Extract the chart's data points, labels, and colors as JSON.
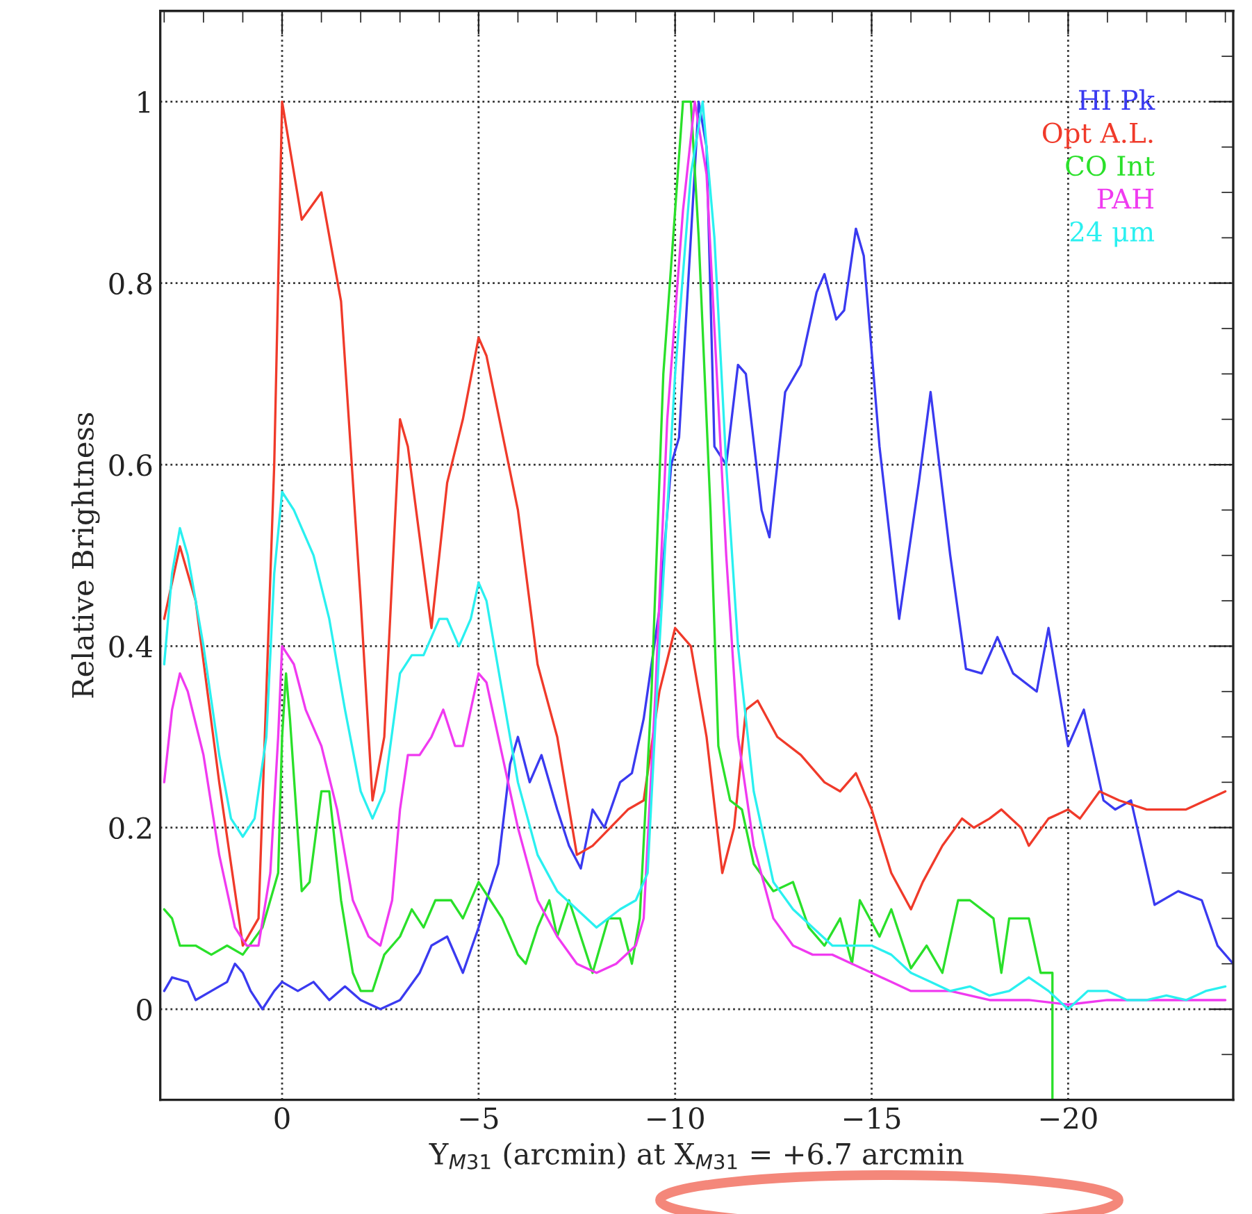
{
  "chart_data": {
    "type": "line",
    "xlabel": "Y$_{M31}$ (arcmin) at X$_{M31}$ = +6.7 arcmin",
    "ylabel": "Relative Brightness",
    "xlim": [
      3.1,
      -24.2
    ],
    "ylim": [
      -0.1,
      1.1
    ],
    "xticks": [
      0,
      {
        "value": -5,
        "label": "−5"
      },
      {
        "value": -10,
        "label": "−10"
      },
      {
        "value": -15,
        "label": "−15"
      },
      {
        "value": -20,
        "label": "−20"
      }
    ],
    "yticks": [
      0,
      0.2,
      0.4,
      0.6,
      0.8,
      1
    ],
    "grid": true,
    "legend": "top right",
    "line_style": "solid",
    "marker": "none",
    "series": [
      {
        "name": "HI Pk",
        "color": "#3a3af0",
        "x": [
          3,
          2.8,
          2.4,
          2.2,
          1.8,
          1.4,
          1.2,
          1.0,
          0.8,
          0.5,
          0.2,
          0,
          -0.4,
          -0.8,
          -1.2,
          -1.6,
          -2.0,
          -2.5,
          -3.0,
          -3.5,
          -3.8,
          -4.2,
          -4.6,
          -5.0,
          -5.2,
          -5.5,
          -5.8,
          -6.0,
          -6.3,
          -6.6,
          -7.0,
          -7.3,
          -7.6,
          -7.9,
          -8.2,
          -8.6,
          -8.9,
          -9.2,
          -9.6,
          -9.9,
          -10.1,
          -10.4,
          -10.6,
          -10.8,
          -11.0,
          -11.3,
          -11.6,
          -11.8,
          -12.2,
          -12.4,
          -12.8,
          -13.2,
          -13.6,
          -13.8,
          -14.1,
          -14.3,
          -14.6,
          -14.8,
          -15.2,
          -15.7,
          -16.2,
          -16.5,
          -17.0,
          -17.4,
          -17.8,
          -18.2,
          -18.6,
          -19.2,
          -19.5,
          -20.0,
          -20.4,
          -20.9,
          -21.2,
          -21.6,
          -22.2,
          -22.8,
          -23.4,
          -23.8,
          -24.2
        ],
        "values": [
          0.02,
          0.035,
          0.03,
          0.01,
          0.02,
          0.03,
          0.05,
          0.04,
          0.02,
          0.0,
          0.02,
          0.03,
          0.02,
          0.03,
          0.01,
          0.025,
          0.01,
          0.0,
          0.01,
          0.04,
          0.07,
          0.08,
          0.04,
          0.09,
          0.12,
          0.16,
          0.27,
          0.3,
          0.25,
          0.28,
          0.22,
          0.18,
          0.155,
          0.22,
          0.2,
          0.25,
          0.26,
          0.32,
          0.44,
          0.6,
          0.63,
          0.85,
          1.0,
          0.95,
          0.62,
          0.6,
          0.71,
          0.7,
          0.55,
          0.52,
          0.68,
          0.71,
          0.79,
          0.81,
          0.76,
          0.77,
          0.86,
          0.83,
          0.62,
          0.43,
          0.58,
          0.68,
          0.5,
          0.375,
          0.37,
          0.41,
          0.37,
          0.35,
          0.42,
          0.29,
          0.33,
          0.23,
          0.22,
          0.23,
          0.115,
          0.13,
          0.12,
          0.07,
          0.05
        ]
      },
      {
        "name": "Opt A.L.",
        "color": "#f03a2a",
        "x": [
          3,
          2.6,
          2.2,
          1.6,
          1.0,
          0.6,
          0.2,
          0,
          -0.5,
          -1.0,
          -1.5,
          -2.0,
          -2.3,
          -2.6,
          -3.0,
          -3.2,
          -3.8,
          -4.2,
          -4.6,
          -5.0,
          -5.2,
          -6.0,
          -6.5,
          -7.0,
          -7.5,
          -7.9,
          -8.8,
          -9.2,
          -9.6,
          -10.0,
          -10.4,
          -10.8,
          -11.2,
          -11.5,
          -11.8,
          -12.1,
          -12.6,
          -13.2,
          -13.8,
          -14.2,
          -14.6,
          -15.0,
          -15.5,
          -16.0,
          -16.3,
          -16.8,
          -17.3,
          -17.6,
          -18.0,
          -18.3,
          -18.8,
          -19.0,
          -19.5,
          -20.0,
          -20.3,
          -20.8,
          -21.3,
          -22.0,
          -23.0,
          -24.0
        ],
        "values": [
          0.43,
          0.51,
          0.45,
          0.25,
          0.07,
          0.1,
          0.6,
          1.0,
          0.87,
          0.9,
          0.78,
          0.45,
          0.23,
          0.3,
          0.65,
          0.62,
          0.42,
          0.58,
          0.65,
          0.74,
          0.72,
          0.55,
          0.38,
          0.3,
          0.17,
          0.18,
          0.22,
          0.23,
          0.35,
          0.42,
          0.4,
          0.3,
          0.15,
          0.2,
          0.33,
          0.34,
          0.3,
          0.28,
          0.25,
          0.24,
          0.26,
          0.22,
          0.15,
          0.11,
          0.14,
          0.18,
          0.21,
          0.2,
          0.21,
          0.22,
          0.2,
          0.18,
          0.21,
          0.22,
          0.21,
          0.24,
          0.23,
          0.22,
          0.22,
          0.24
        ]
      },
      {
        "name": "CO Int",
        "color": "#2ae02a",
        "x": [
          3,
          2.8,
          2.6,
          2.2,
          1.8,
          1.4,
          1.0,
          0.5,
          0.1,
          0.0,
          -0.1,
          -0.2,
          -0.5,
          -0.7,
          -1.0,
          -1.2,
          -1.5,
          -1.8,
          -2.0,
          -2.3,
          -2.6,
          -3.0,
          -3.3,
          -3.6,
          -3.9,
          -4.3,
          -4.6,
          -5.0,
          -5.3,
          -5.6,
          -6.0,
          -6.2,
          -6.5,
          -6.8,
          -7.0,
          -7.3,
          -7.6,
          -7.9,
          -8.3,
          -8.6,
          -8.9,
          -9.1,
          -9.4,
          -9.7,
          -10.0,
          -10.2,
          -10.4,
          -10.6,
          -10.9,
          -11.1,
          -11.4,
          -11.7,
          -12.0,
          -12.5,
          -13.0,
          -13.4,
          -13.8,
          -14.2,
          -14.5,
          -14.7,
          -15.2,
          -15.5,
          -16.0,
          -16.4,
          -16.8,
          -17.2,
          -17.5,
          -18.1,
          -18.3,
          -18.5,
          -19.0,
          -19.3,
          -19.6,
          -19.6
        ],
        "values": [
          0.11,
          0.1,
          0.07,
          0.07,
          0.06,
          0.07,
          0.06,
          0.09,
          0.15,
          0.3,
          0.37,
          0.32,
          0.13,
          0.14,
          0.24,
          0.24,
          0.12,
          0.04,
          0.02,
          0.02,
          0.06,
          0.08,
          0.11,
          0.09,
          0.12,
          0.12,
          0.1,
          0.14,
          0.12,
          0.1,
          0.06,
          0.05,
          0.09,
          0.12,
          0.08,
          0.12,
          0.08,
          0.04,
          0.1,
          0.1,
          0.05,
          0.1,
          0.35,
          0.7,
          0.88,
          1.0,
          1.0,
          0.85,
          0.55,
          0.29,
          0.23,
          0.22,
          0.16,
          0.13,
          0.14,
          0.09,
          0.07,
          0.1,
          0.05,
          0.12,
          0.08,
          0.11,
          0.045,
          0.07,
          0.04,
          0.12,
          0.12,
          0.1,
          0.04,
          0.1,
          0.1,
          0.04,
          0.04,
          -0.1
        ]
      },
      {
        "name": "PAH",
        "color": "#f03af0",
        "x": [
          3,
          2.8,
          2.6,
          2.4,
          2.0,
          1.6,
          1.2,
          0.9,
          0.6,
          0.3,
          0.1,
          0.0,
          -0.3,
          -0.6,
          -1.0,
          -1.4,
          -1.8,
          -2.2,
          -2.5,
          -2.8,
          -3.0,
          -3.2,
          -3.5,
          -3.8,
          -4.1,
          -4.4,
          -4.6,
          -4.8,
          -5.0,
          -5.2,
          -5.6,
          -6.0,
          -6.5,
          -7.0,
          -7.5,
          -8.0,
          -8.5,
          -9.0,
          -9.2,
          -9.5,
          -9.8,
          -10.2,
          -10.5,
          -10.8,
          -11.0,
          -11.3,
          -11.6,
          -12.0,
          -12.5,
          -13.0,
          -13.5,
          -14.0,
          -14.5,
          -15.0,
          -15.5,
          -16.0,
          -17.0,
          -18.0,
          -19.0,
          -20.0,
          -21.0,
          -22.0,
          -23.0,
          -24.0
        ],
        "values": [
          0.25,
          0.33,
          0.37,
          0.35,
          0.28,
          0.17,
          0.09,
          0.07,
          0.07,
          0.15,
          0.3,
          0.4,
          0.38,
          0.33,
          0.29,
          0.22,
          0.12,
          0.08,
          0.07,
          0.12,
          0.22,
          0.28,
          0.28,
          0.3,
          0.33,
          0.29,
          0.29,
          0.33,
          0.37,
          0.36,
          0.28,
          0.2,
          0.12,
          0.08,
          0.05,
          0.04,
          0.05,
          0.07,
          0.1,
          0.35,
          0.65,
          0.88,
          1.0,
          0.92,
          0.75,
          0.5,
          0.3,
          0.18,
          0.1,
          0.07,
          0.06,
          0.06,
          0.05,
          0.04,
          0.03,
          0.02,
          0.02,
          0.01,
          0.01,
          0.005,
          0.01,
          0.01,
          0.01,
          0.01
        ]
      },
      {
        "name": "24 μm",
        "color": "#2af0f0",
        "x": [
          3,
          2.8,
          2.6,
          2.4,
          2.0,
          1.6,
          1.3,
          1.0,
          0.7,
          0.4,
          0.2,
          0.0,
          -0.3,
          -0.8,
          -1.2,
          -1.6,
          -2.0,
          -2.3,
          -2.6,
          -3.0,
          -3.3,
          -3.6,
          -4.0,
          -4.2,
          -4.5,
          -4.8,
          -5.0,
          -5.2,
          -5.6,
          -6.0,
          -6.5,
          -7.0,
          -7.5,
          -8.0,
          -8.6,
          -9.0,
          -9.3,
          -9.6,
          -10.0,
          -10.4,
          -10.7,
          -11.0,
          -11.3,
          -11.6,
          -12.0,
          -12.5,
          -13.0,
          -13.5,
          -14.0,
          -14.5,
          -15.0,
          -15.5,
          -16.0,
          -16.5,
          -17.0,
          -17.5,
          -18.0,
          -18.5,
          -19.0,
          -19.5,
          -20.0,
          -20.5,
          -21.0,
          -21.5,
          -22.0,
          -22.5,
          -23.0,
          -23.5,
          -24.0
        ],
        "values": [
          0.38,
          0.48,
          0.53,
          0.5,
          0.4,
          0.28,
          0.21,
          0.19,
          0.21,
          0.3,
          0.48,
          0.57,
          0.55,
          0.5,
          0.43,
          0.33,
          0.24,
          0.21,
          0.24,
          0.37,
          0.39,
          0.39,
          0.43,
          0.43,
          0.4,
          0.43,
          0.47,
          0.45,
          0.35,
          0.25,
          0.17,
          0.13,
          0.11,
          0.09,
          0.11,
          0.12,
          0.15,
          0.4,
          0.7,
          0.92,
          1.0,
          0.85,
          0.6,
          0.4,
          0.24,
          0.14,
          0.11,
          0.09,
          0.07,
          0.07,
          0.07,
          0.06,
          0.04,
          0.03,
          0.02,
          0.025,
          0.015,
          0.02,
          0.035,
          0.02,
          0.0,
          0.02,
          0.02,
          0.01,
          0.01,
          0.015,
          0.01,
          0.02,
          0.025
        ]
      }
    ]
  }
}
